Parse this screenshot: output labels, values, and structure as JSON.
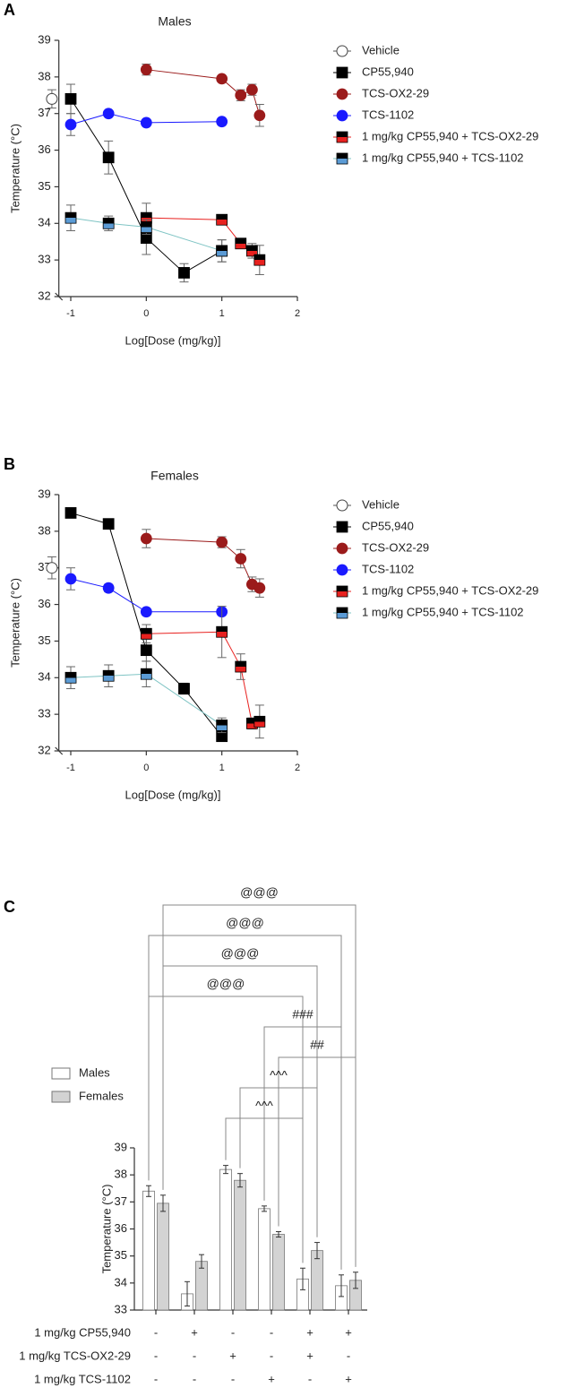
{
  "chart_data": [
    {
      "type": "line",
      "panel_label": "A",
      "title": "Males",
      "xlabel": "Log[Dose (mg/kg)]",
      "ylabel": "Temperature (°C)",
      "xlim": [
        -1.3,
        2
      ],
      "xticks": [
        -1,
        0,
        1,
        2
      ],
      "ylim": [
        32,
        39
      ],
      "yticks": [
        32,
        33,
        34,
        35,
        36,
        37,
        38,
        39
      ],
      "series": [
        {
          "name": "Vehicle",
          "marker": "circle",
          "hollow": true,
          "color": "#ffffff",
          "line_color": "#555555",
          "x": [
            -1.25
          ],
          "values": [
            37.4
          ],
          "errors": [
            0.25
          ]
        },
        {
          "name": "CP55,940",
          "marker": "square",
          "color": "#000000",
          "line_color": "#000000",
          "x": [
            -1,
            -0.5,
            0,
            0.5,
            1
          ],
          "values": [
            37.4,
            35.8,
            33.6,
            32.65,
            33.25
          ],
          "errors": [
            0.4,
            0.45,
            0.45,
            0.25,
            0.3
          ]
        },
        {
          "name": "TCS-OX2-29",
          "marker": "circle",
          "color": "#9b1b1b",
          "line_color": "#9b1b1b",
          "x": [
            0,
            1,
            1.25,
            1.4,
            1.5
          ],
          "values": [
            38.2,
            37.95,
            37.5,
            37.65,
            36.95
          ],
          "errors": [
            0.15,
            0.05,
            0.15,
            0.15,
            0.3
          ]
        },
        {
          "name": "TCS-1102",
          "marker": "circle",
          "color": "#1a1aff",
          "line_color": "#1a1aff",
          "x": [
            -1,
            -0.5,
            0,
            1
          ],
          "values": [
            36.7,
            37.0,
            36.75,
            36.78
          ],
          "errors": [
            0.3,
            0.05,
            0.05,
            0.05
          ]
        },
        {
          "name": "1 mg/kg CP55,940 + TCS-OX2-29",
          "marker": "square",
          "color": "#000000",
          "color2": "#e8211f",
          "line_color": "#e8211f",
          "x": [
            0,
            1,
            1.25,
            1.4,
            1.5
          ],
          "values": [
            34.15,
            34.1,
            33.45,
            33.25,
            33.0
          ],
          "errors": [
            0.4,
            0.1,
            0.1,
            0.2,
            0.4
          ]
        },
        {
          "name": "1 mg/kg CP55,940 + TCS-1102",
          "marker": "square",
          "color": "#000000",
          "color2": "#5b9bd5",
          "line_color": "#7fc4c4",
          "x": [
            -1,
            -0.5,
            0,
            1
          ],
          "values": [
            34.15,
            34.0,
            33.9,
            33.25
          ],
          "errors": [
            0.35,
            0.2,
            0.2,
            0.3
          ]
        }
      ]
    },
    {
      "type": "line",
      "panel_label": "B",
      "title": "Females",
      "xlabel": "Log[Dose (mg/kg)]",
      "ylabel": "Temperature (°C)",
      "xlim": [
        -1.3,
        2
      ],
      "xticks": [
        -1,
        0,
        1,
        2
      ],
      "ylim": [
        32,
        39
      ],
      "yticks": [
        32,
        33,
        34,
        35,
        36,
        37,
        38,
        39
      ],
      "series": [
        {
          "name": "Vehicle",
          "marker": "circle",
          "hollow": true,
          "color": "#ffffff",
          "line_color": "#555555",
          "x": [
            -1.25
          ],
          "values": [
            37.0
          ],
          "errors": [
            0.3
          ]
        },
        {
          "name": "CP55,940",
          "marker": "square",
          "color": "#000000",
          "line_color": "#000000",
          "x": [
            -1,
            -0.5,
            0,
            0.5,
            1
          ],
          "values": [
            38.5,
            38.2,
            34.75,
            33.7,
            32.4
          ],
          "errors": [
            0.05,
            0.05,
            0.3,
            0.15,
            0.1
          ]
        },
        {
          "name": "TCS-OX2-29",
          "marker": "circle",
          "color": "#9b1b1b",
          "line_color": "#9b1b1b",
          "x": [
            0,
            1,
            1.25,
            1.4,
            1.5
          ],
          "values": [
            37.8,
            37.7,
            37.25,
            36.55,
            36.45
          ],
          "errors": [
            0.25,
            0.15,
            0.25,
            0.2,
            0.25
          ]
        },
        {
          "name": "TCS-1102",
          "marker": "circle",
          "color": "#1a1aff",
          "line_color": "#1a1aff",
          "x": [
            -1,
            -0.5,
            0,
            1
          ],
          "values": [
            36.7,
            36.45,
            35.8,
            35.8
          ],
          "errors": [
            0.3,
            0.1,
            0.05,
            0.05
          ]
        },
        {
          "name": "1 mg/kg CP55,940 + TCS-OX2-29",
          "marker": "square",
          "color": "#000000",
          "color2": "#e8211f",
          "line_color": "#e8211f",
          "x": [
            0,
            1,
            1.25,
            1.4,
            1.5
          ],
          "values": [
            35.2,
            35.25,
            34.3,
            32.75,
            32.8
          ],
          "errors": [
            0.25,
            0.7,
            0.35,
            0.15,
            0.45
          ]
        },
        {
          "name": "1 mg/kg CP55,940 + TCS-1102",
          "marker": "square",
          "color": "#000000",
          "color2": "#5b9bd5",
          "line_color": "#7fc4c4",
          "x": [
            -1,
            -0.5,
            0,
            1
          ],
          "values": [
            34.0,
            34.05,
            34.1,
            32.7
          ],
          "errors": [
            0.3,
            0.3,
            0.35,
            0.2
          ]
        }
      ]
    },
    {
      "type": "bar",
      "panel_label": "C",
      "ylabel": "Temperature (°C)",
      "ylim": [
        33,
        39
      ],
      "yticks": [
        33,
        34,
        35,
        36,
        37,
        38,
        39
      ],
      "series": [
        {
          "name": "Males",
          "color": "#ffffff",
          "values": [
            37.4,
            33.6,
            38.2,
            36.75,
            34.15,
            33.9
          ],
          "errors": [
            0.2,
            0.45,
            0.15,
            0.1,
            0.4,
            0.4
          ]
        },
        {
          "name": "Females",
          "color": "#d3d3d3",
          "values": [
            36.95,
            34.8,
            37.8,
            35.8,
            35.2,
            34.1
          ],
          "errors": [
            0.3,
            0.25,
            0.25,
            0.1,
            0.3,
            0.3
          ]
        }
      ],
      "treatments": [
        {
          "label": "1 mg/kg CP55,940",
          "entries": [
            "-",
            "+",
            "-",
            "-",
            "+",
            "+"
          ]
        },
        {
          "label": "1 mg/kg TCS-OX2-29",
          "entries": [
            "-",
            "-",
            "+",
            "-",
            "+",
            "-"
          ]
        },
        {
          "label": "1 mg/kg TCS-1102",
          "entries": [
            "-",
            "-",
            "-",
            "+",
            "-",
            "+"
          ]
        }
      ],
      "comparisons": [
        {
          "from": [
            0,
            1
          ],
          "to": [
            5,
            1
          ],
          "label": "@@@"
        },
        {
          "from": [
            0,
            0
          ],
          "to": [
            5,
            0
          ],
          "label": "@@@"
        },
        {
          "from": [
            0,
            1
          ],
          "to": [
            4,
            1
          ],
          "label": "@@@"
        },
        {
          "from": [
            0,
            0
          ],
          "to": [
            4,
            0
          ],
          "label": "@@@"
        },
        {
          "from": [
            3,
            0
          ],
          "to": [
            5,
            0
          ],
          "label": "###"
        },
        {
          "from": [
            3,
            1
          ],
          "to": [
            5,
            1
          ],
          "label": "##"
        },
        {
          "from": [
            2,
            1
          ],
          "to": [
            4,
            1
          ],
          "label": "^^^"
        },
        {
          "from": [
            2,
            0
          ],
          "to": [
            4,
            0
          ],
          "label": "^^^"
        }
      ]
    }
  ]
}
